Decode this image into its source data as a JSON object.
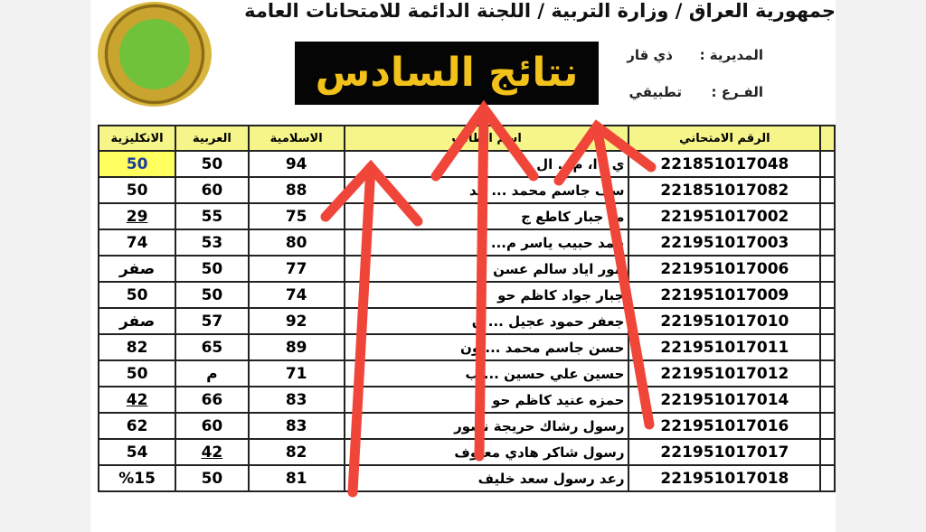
{
  "header": {
    "title": "جمهورية العراق / وزارة التربية / اللجنة الدائمة للامتحانات العامة",
    "banner": "نتائج السادس",
    "directorate_label": "المديرية :",
    "directorate_value": "ذي قار",
    "branch_label": "الفـرع :",
    "branch_value": "تطبيقي"
  },
  "table": {
    "columns": [
      "",
      "الرقم الامتحاني",
      "اسم الطالب",
      "الاسلامية",
      "العربية",
      "الانكليزية"
    ],
    "rows": [
      {
        "id": "221851017048",
        "name": "ي ، ا، م... ال",
        "islamic": "94",
        "arabic": "50",
        "english": "50"
      },
      {
        "id": "221851017082",
        "name": "سف جاسم محمد ... هد",
        "islamic": "88",
        "arabic": "60",
        "english": "50"
      },
      {
        "id": "221951017002",
        "name": "مد جبار كاطع ج",
        "islamic": "75",
        "arabic": "55",
        "english": "29"
      },
      {
        "id": "221951017003",
        "name": "حمد حبيب ياسر م... د",
        "islamic": "80",
        "arabic": "53",
        "english": "74"
      },
      {
        "id": "221951017006",
        "name": "انور اياد سالم عسن",
        "islamic": "77",
        "arabic": "50",
        "english": "صفر"
      },
      {
        "id": "221951017009",
        "name": "جبار جواد كاظم حو",
        "islamic": "74",
        "arabic": "50",
        "english": "50"
      },
      {
        "id": "221951017010",
        "name": "جعفر حمود عجيل ... ن",
        "islamic": "92",
        "arabic": "57",
        "english": "صفر"
      },
      {
        "id": "221951017011",
        "name": "حسن جاسم محمد ... ون",
        "islamic": "89",
        "arabic": "65",
        "english": "82"
      },
      {
        "id": "221951017012",
        "name": "حسين علي حسين ... ب",
        "islamic": "71",
        "arabic": "م",
        "english": "50"
      },
      {
        "id": "221951017014",
        "name": "حمزه عنيد كاظم حو",
        "islamic": "83",
        "arabic": "66",
        "english": "42"
      },
      {
        "id": "221951017016",
        "name": "رسول رشاك حريجة نصور",
        "islamic": "83",
        "arabic": "60",
        "english": "62"
      },
      {
        "id": "221951017017",
        "name": "رسول شاكر هادي معيوف",
        "islamic": "82",
        "arabic": "42",
        "english": "54"
      },
      {
        "id": "221951017018",
        "name": "رعد رسول سعد خليف",
        "islamic": "81",
        "arabic": "50",
        "english": "%15"
      }
    ]
  },
  "colors": {
    "banner_bg": "#050505",
    "banner_text": "#f2c21b",
    "header_row": "#f6f58a",
    "arrow": "#f0463a"
  }
}
